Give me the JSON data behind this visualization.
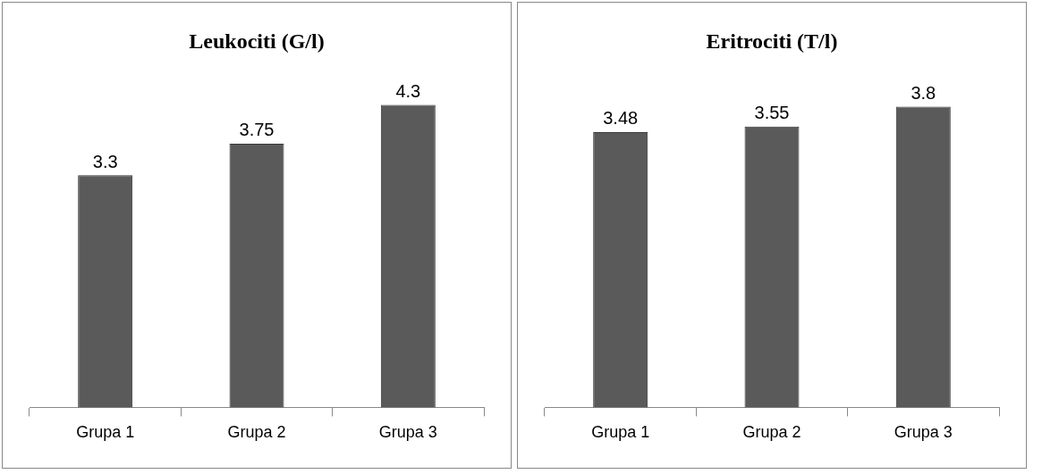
{
  "chart_data": [
    {
      "type": "bar",
      "title": "Leukociti (G/l)",
      "categories": [
        "Grupa 1",
        "Grupa 2",
        "Grupa 3"
      ],
      "values": [
        3.3,
        3.75,
        4.3
      ],
      "color": "#5a5a5a",
      "data_labels": true,
      "legend": false,
      "grid": false,
      "tick_labels": "x"
    },
    {
      "type": "bar",
      "title": "Eritrociti (T/l)",
      "categories": [
        "Grupa 1",
        "Grupa 2",
        "Grupa 3"
      ],
      "values": [
        3.48,
        3.55,
        3.8
      ],
      "color": "#5a5a5a",
      "data_labels": true,
      "legend": false,
      "grid": false,
      "tick_labels": "x"
    }
  ]
}
